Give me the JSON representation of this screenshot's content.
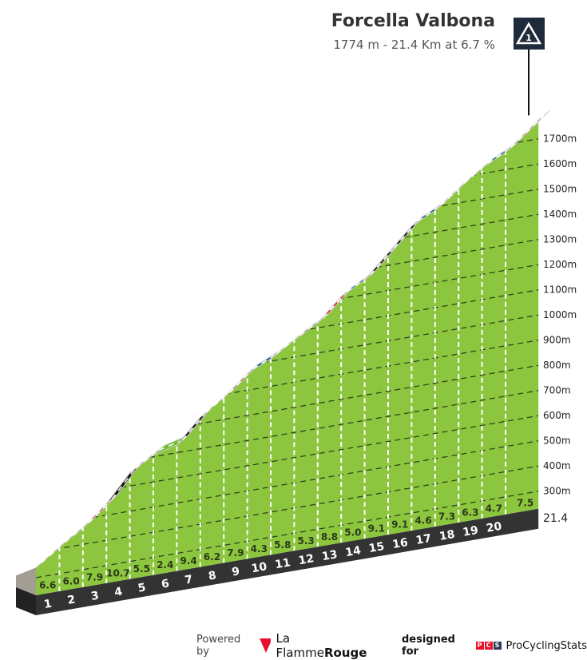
{
  "header": {
    "title": "Forcella Valbona",
    "subtitle": "1774 m - 21.4 Km at 6.7 %",
    "marker_label": "1"
  },
  "footer": {
    "powered_by": "Powered by",
    "brand_prefix": "La Flamme",
    "brand_bold": "Rouge",
    "designed_for": "designed for",
    "pcs_letters": [
      "P",
      "C",
      "S"
    ],
    "pcs_name": "ProCyclingStats"
  },
  "colors": {
    "body": "#8cc63f",
    "easy": "#6cc02a",
    "moderate": "#0b5a8a",
    "hard": "#e8112d",
    "very_hard": "#111111",
    "base": "#333333",
    "side": "#a39e94"
  },
  "chart_data": {
    "type": "area",
    "title": "Forcella Valbona",
    "summit_altitude_m": 1774,
    "total_distance_km": 21.4,
    "km_labels": [
      "1",
      "2",
      "3",
      "4",
      "5",
      "6",
      "7",
      "8",
      "9",
      "10",
      "11",
      "12",
      "13",
      "14",
      "15",
      "16",
      "17",
      "18",
      "19",
      "20"
    ],
    "final_distance_label": "21.4",
    "segments": [
      {
        "km_from": 0,
        "km_to": 1,
        "gradient": 6.6
      },
      {
        "km_from": 1,
        "km_to": 2,
        "gradient": 6.0
      },
      {
        "km_from": 2,
        "km_to": 3,
        "gradient": 7.9
      },
      {
        "km_from": 3,
        "km_to": 4,
        "gradient": 10.7
      },
      {
        "km_from": 4,
        "km_to": 5,
        "gradient": 5.5
      },
      {
        "km_from": 5,
        "km_to": 6,
        "gradient": 2.4
      },
      {
        "km_from": 6,
        "km_to": 7,
        "gradient": 9.4
      },
      {
        "km_from": 7,
        "km_to": 8,
        "gradient": 6.2
      },
      {
        "km_from": 8,
        "km_to": 9,
        "gradient": 7.9
      },
      {
        "km_from": 9,
        "km_to": 10,
        "gradient": 4.3
      },
      {
        "km_from": 10,
        "km_to": 11,
        "gradient": 5.8
      },
      {
        "km_from": 11,
        "km_to": 12,
        "gradient": 5.3
      },
      {
        "km_from": 12,
        "km_to": 13,
        "gradient": 8.8
      },
      {
        "km_from": 13,
        "km_to": 14,
        "gradient": 5.0
      },
      {
        "km_from": 14,
        "km_to": 15,
        "gradient": 9.1
      },
      {
        "km_from": 15,
        "km_to": 16,
        "gradient": 9.1
      },
      {
        "km_from": 16,
        "km_to": 17,
        "gradient": 4.6
      },
      {
        "km_from": 17,
        "km_to": 18,
        "gradient": 7.3
      },
      {
        "km_from": 18,
        "km_to": 19,
        "gradient": 6.3
      },
      {
        "km_from": 19,
        "km_to": 20,
        "gradient": 4.7
      },
      {
        "km_from": 20,
        "km_to": 21.4,
        "gradient": 7.5
      }
    ],
    "altitude_ticks": [
      300,
      400,
      500,
      600,
      700,
      800,
      900,
      1000,
      1100,
      1200,
      1300,
      1400,
      1500,
      1600,
      1700
    ],
    "altitude_unit": "m",
    "grid": true
  }
}
